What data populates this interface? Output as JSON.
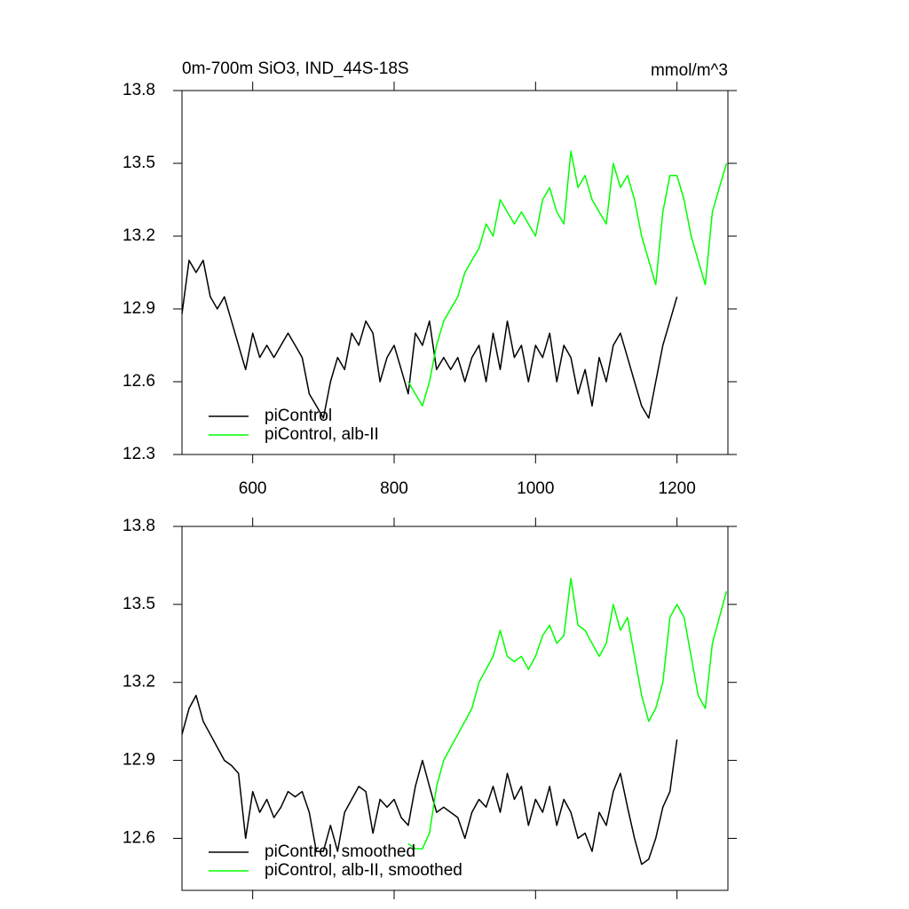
{
  "chart_data": [
    {
      "type": "line",
      "title": "0m-700m SiO3, IND_44S-18S",
      "units": "mmol/m^3",
      "x": [
        500,
        510,
        520,
        530,
        540,
        550,
        560,
        570,
        580,
        590,
        600,
        610,
        620,
        630,
        640,
        650,
        660,
        670,
        680,
        690,
        700,
        710,
        720,
        730,
        740,
        750,
        760,
        770,
        780,
        790,
        800,
        810,
        820,
        830,
        840,
        850,
        860,
        870,
        880,
        890,
        900,
        910,
        920,
        930,
        940,
        950,
        960,
        970,
        980,
        990,
        1000,
        1010,
        1020,
        1030,
        1040,
        1050,
        1060,
        1070,
        1080,
        1090,
        1100,
        1110,
        1120,
        1130,
        1140,
        1150,
        1160,
        1170,
        1180,
        1190,
        1200,
        1210,
        1220,
        1230,
        1240,
        1250,
        1260,
        1270
      ],
      "series": [
        {
          "name": "piControl",
          "color": "#000000",
          "values": [
            12.88,
            13.1,
            13.05,
            13.1,
            12.95,
            12.9,
            12.95,
            12.85,
            12.75,
            12.65,
            12.8,
            12.7,
            12.75,
            12.7,
            12.75,
            12.8,
            12.75,
            12.7,
            12.55,
            12.5,
            12.45,
            12.6,
            12.7,
            12.65,
            12.8,
            12.75,
            12.85,
            12.8,
            12.6,
            12.7,
            12.75,
            12.65,
            12.55,
            12.8,
            12.75,
            12.85,
            12.65,
            12.7,
            12.65,
            12.7,
            12.6,
            12.7,
            12.75,
            12.6,
            12.8,
            12.65,
            12.85,
            12.7,
            12.75,
            12.6,
            12.75,
            12.7,
            12.8,
            12.6,
            12.75,
            12.7,
            12.55,
            12.65,
            12.5,
            12.7,
            12.6,
            12.75,
            12.8,
            12.7,
            12.6,
            12.5,
            12.45,
            12.6,
            12.75,
            12.85,
            12.95,
            null,
            null,
            null,
            null,
            null,
            null,
            null
          ]
        },
        {
          "name": "piControl, alb-II",
          "color": "#00ff00",
          "values": [
            null,
            null,
            null,
            null,
            null,
            null,
            null,
            null,
            null,
            null,
            null,
            null,
            null,
            null,
            null,
            null,
            null,
            null,
            null,
            null,
            null,
            null,
            null,
            null,
            null,
            null,
            null,
            null,
            null,
            null,
            null,
            null,
            12.6,
            12.55,
            12.5,
            12.6,
            12.75,
            12.85,
            12.9,
            12.95,
            13.05,
            13.1,
            13.15,
            13.25,
            13.2,
            13.35,
            13.3,
            13.25,
            13.3,
            13.25,
            13.2,
            13.35,
            13.4,
            13.3,
            13.25,
            13.55,
            13.4,
            13.45,
            13.35,
            13.3,
            13.25,
            13.5,
            13.4,
            13.45,
            13.35,
            13.2,
            13.1,
            13.0,
            13.3,
            13.45,
            13.45,
            13.35,
            13.2,
            13.1,
            13.0,
            13.3,
            13.4,
            13.5
          ]
        }
      ],
      "xlim": [
        500,
        1272
      ],
      "xticks": [
        600,
        800,
        1000,
        1200
      ],
      "xtick_labels": true,
      "ylim": [
        12.3,
        13.8
      ],
      "yticks": [
        12.3,
        12.6,
        12.9,
        13.2,
        13.5,
        13.8
      ],
      "legend": "lower left"
    },
    {
      "type": "line",
      "x": [
        500,
        510,
        520,
        530,
        540,
        550,
        560,
        570,
        580,
        590,
        600,
        610,
        620,
        630,
        640,
        650,
        660,
        670,
        680,
        690,
        700,
        710,
        720,
        730,
        740,
        750,
        760,
        770,
        780,
        790,
        800,
        810,
        820,
        830,
        840,
        850,
        860,
        870,
        880,
        890,
        900,
        910,
        920,
        930,
        940,
        950,
        960,
        970,
        980,
        990,
        1000,
        1010,
        1020,
        1030,
        1040,
        1050,
        1060,
        1070,
        1080,
        1090,
        1100,
        1110,
        1120,
        1130,
        1140,
        1150,
        1160,
        1170,
        1180,
        1190,
        1200,
        1210,
        1220,
        1230,
        1240,
        1250,
        1260,
        1270
      ],
      "series": [
        {
          "name": "piControl, smoothed",
          "color": "#000000",
          "values": [
            13.0,
            13.1,
            13.15,
            13.05,
            13.0,
            12.95,
            12.9,
            12.88,
            12.85,
            12.6,
            12.78,
            12.7,
            12.75,
            12.68,
            12.72,
            12.78,
            12.76,
            12.78,
            12.7,
            12.55,
            12.55,
            12.65,
            12.55,
            12.7,
            12.75,
            12.8,
            12.78,
            12.62,
            12.75,
            12.72,
            12.75,
            12.68,
            12.65,
            12.8,
            12.9,
            12.8,
            12.7,
            12.72,
            12.7,
            12.68,
            12.6,
            12.7,
            12.75,
            12.72,
            12.8,
            12.7,
            12.85,
            12.75,
            12.8,
            12.65,
            12.75,
            12.7,
            12.8,
            12.65,
            12.75,
            12.7,
            12.6,
            12.62,
            12.55,
            12.7,
            12.65,
            12.78,
            12.85,
            12.72,
            12.6,
            12.5,
            12.52,
            12.6,
            12.72,
            12.78,
            12.98,
            null,
            null,
            null,
            null,
            null,
            null,
            null
          ]
        },
        {
          "name": "piControl, alb-II, smoothed",
          "color": "#00ff00",
          "values": [
            null,
            null,
            null,
            null,
            null,
            null,
            null,
            null,
            null,
            null,
            null,
            null,
            null,
            null,
            null,
            null,
            null,
            null,
            null,
            null,
            null,
            null,
            null,
            null,
            null,
            null,
            null,
            null,
            null,
            null,
            null,
            null,
            12.58,
            12.56,
            12.56,
            12.62,
            12.8,
            12.9,
            12.95,
            13.0,
            13.05,
            13.1,
            13.2,
            13.25,
            13.3,
            13.4,
            13.3,
            13.28,
            13.3,
            13.25,
            13.3,
            13.38,
            13.42,
            13.35,
            13.38,
            13.6,
            13.42,
            13.4,
            13.35,
            13.3,
            13.35,
            13.5,
            13.4,
            13.45,
            13.3,
            13.15,
            13.05,
            13.1,
            13.2,
            13.45,
            13.5,
            13.45,
            13.3,
            13.15,
            13.1,
            13.35,
            13.45,
            13.55
          ]
        }
      ],
      "xlim": [
        500,
        1272
      ],
      "xticks": [
        600,
        800,
        1000,
        1200
      ],
      "xtick_labels": false,
      "ylim": [
        12.4,
        13.8
      ],
      "yticks": [
        12.6,
        12.9,
        13.2,
        13.5,
        13.8
      ],
      "legend": "lower left"
    }
  ]
}
